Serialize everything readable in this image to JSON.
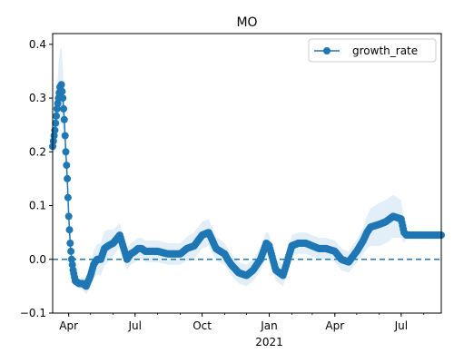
{
  "chart_data": {
    "type": "line",
    "title": "MO",
    "xlabel": "",
    "ylabel": "",
    "x_tick_labels": [
      "Apr",
      "Jul",
      "Oct",
      "Jan\n2021",
      "Apr",
      "Jul"
    ],
    "x_tick_dates": [
      "2020-04-01",
      "2020-07-01",
      "2020-10-01",
      "2021-01-01",
      "2021-04-01",
      "2021-07-01"
    ],
    "xlim": [
      "2020-03-10",
      "2021-08-25"
    ],
    "ylim": [
      -0.1,
      0.42
    ],
    "y_ticks": [
      -0.1,
      0.0,
      0.1,
      0.2,
      0.3,
      0.4
    ],
    "y_tick_labels": [
      "−0.1",
      "0.0",
      "0.1",
      "0.2",
      "0.3",
      "0.4"
    ],
    "reference_line": {
      "y": 0.0,
      "style": "dashed"
    },
    "grid": false,
    "legend": {
      "placement": "top-right",
      "entries": [
        "growth_rate"
      ]
    },
    "colors": {
      "series": "#1f77b4",
      "band": "#cfe2f3"
    },
    "series": [
      {
        "name": "growth_rate",
        "marker": "circle",
        "x": [
          "2020-03-10",
          "2020-03-13",
          "2020-03-16",
          "2020-03-18",
          "2020-03-20",
          "2020-03-22",
          "2020-03-24",
          "2020-03-26",
          "2020-03-28",
          "2020-03-30",
          "2020-04-01",
          "2020-04-03",
          "2020-04-05",
          "2020-04-07",
          "2020-04-10",
          "2020-04-15",
          "2020-04-20",
          "2020-04-25",
          "2020-05-01",
          "2020-05-05",
          "2020-05-10",
          "2020-05-15",
          "2020-05-20",
          "2020-05-25",
          "2020-06-01",
          "2020-06-10",
          "2020-06-20",
          "2020-06-25",
          "2020-07-01",
          "2020-07-05",
          "2020-07-10",
          "2020-07-15",
          "2020-07-20",
          "2020-08-01",
          "2020-08-15",
          "2020-09-01",
          "2020-09-10",
          "2020-09-20",
          "2020-10-01",
          "2020-10-10",
          "2020-10-20",
          "2020-11-01",
          "2020-11-05",
          "2020-11-10",
          "2020-11-20",
          "2020-12-01",
          "2020-12-10",
          "2020-12-20",
          "2020-12-28",
          "2021-01-01",
          "2021-01-10",
          "2021-01-20",
          "2021-02-01",
          "2021-02-10",
          "2021-02-20",
          "2021-03-01",
          "2021-03-10",
          "2021-03-20",
          "2021-04-01",
          "2021-04-10",
          "2021-04-20",
          "2021-05-01",
          "2021-05-10",
          "2021-05-15",
          "2021-05-20",
          "2021-06-01",
          "2021-06-10",
          "2021-06-20",
          "2021-07-01",
          "2021-07-05",
          "2021-07-08",
          "2021-07-10",
          "2021-07-15",
          "2021-08-01",
          "2021-08-25"
        ],
        "values": [
          0.21,
          0.24,
          0.28,
          0.3,
          0.32,
          0.325,
          0.3,
          0.26,
          0.2,
          0.15,
          0.08,
          0.03,
          0.0,
          -0.02,
          -0.04,
          -0.045,
          -0.045,
          -0.05,
          -0.03,
          -0.01,
          0.0,
          0.0,
          0.02,
          0.025,
          0.03,
          0.045,
          0.0,
          0.01,
          0.015,
          0.02,
          0.02,
          0.015,
          0.015,
          0.015,
          0.01,
          0.01,
          0.02,
          0.025,
          0.045,
          0.05,
          0.02,
          0.01,
          0.0,
          -0.01,
          -0.025,
          -0.03,
          -0.02,
          0.0,
          0.03,
          0.025,
          -0.02,
          -0.03,
          0.025,
          0.03,
          0.03,
          0.025,
          0.02,
          0.02,
          0.015,
          0.0,
          -0.005,
          0.015,
          0.035,
          0.05,
          0.06,
          0.065,
          0.07,
          0.08,
          0.075,
          0.05,
          0.045,
          0.045,
          0.045,
          0.045,
          0.045
        ],
        "band": [
          0.02,
          0.03,
          0.04,
          0.06,
          0.07,
          0.07,
          0.06,
          0.04,
          0.03,
          0.02,
          0.015,
          0.012,
          0.01,
          0.01,
          0.01,
          0.01,
          0.012,
          0.015,
          0.02,
          0.025,
          0.028,
          0.03,
          0.032,
          0.03,
          0.025,
          0.022,
          0.02,
          0.02,
          0.02,
          0.02,
          0.02,
          0.02,
          0.02,
          0.02,
          0.02,
          0.02,
          0.022,
          0.025,
          0.025,
          0.025,
          0.022,
          0.02,
          0.02,
          0.02,
          0.02,
          0.02,
          0.02,
          0.022,
          0.022,
          0.022,
          0.02,
          0.02,
          0.02,
          0.02,
          0.02,
          0.02,
          0.02,
          0.02,
          0.02,
          0.02,
          0.02,
          0.022,
          0.025,
          0.03,
          0.035,
          0.04,
          0.04,
          0.04,
          0.035,
          0.02,
          0.005,
          0.002,
          0.0,
          0.0,
          0.0
        ]
      }
    ]
  }
}
